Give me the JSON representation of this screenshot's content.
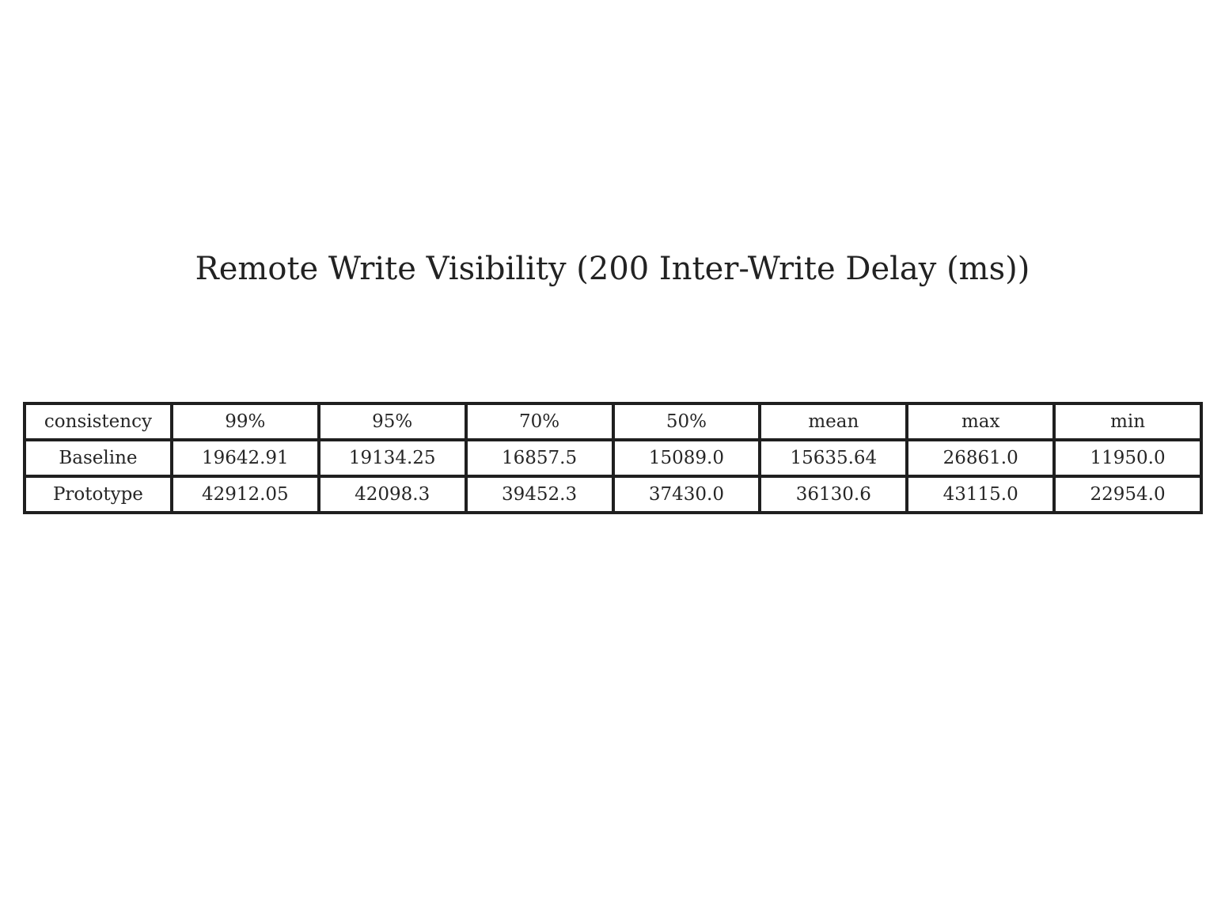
{
  "chart_data": {
    "type": "table",
    "title": "Remote Write Visibility (200 Inter-Write Delay (ms))",
    "columns": [
      "consistency",
      "99%",
      "95%",
      "70%",
      "50%",
      "mean",
      "max",
      "min"
    ],
    "rows": [
      [
        "Baseline",
        "19642.91",
        "19134.25",
        "16857.5",
        "15089.0",
        "15635.64",
        "26861.0",
        "11950.0"
      ],
      [
        "Prototype",
        "42912.05",
        "42098.3",
        "39452.3",
        "37430.0",
        "36130.6",
        "43115.0",
        "22954.0"
      ]
    ]
  }
}
